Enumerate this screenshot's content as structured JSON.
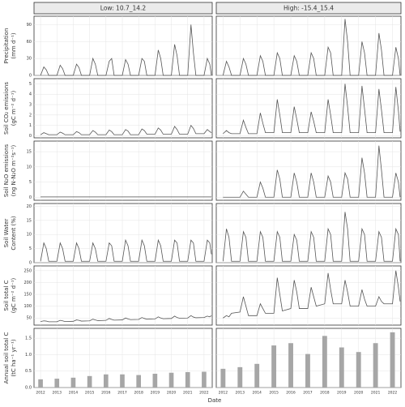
{
  "chart_data": {
    "type": "facet-grid",
    "facets": [
      "Low: 10.7_14.2",
      "High: -15.4_15.4"
    ],
    "x_label": "Date",
    "xlim": [
      2011.6,
      2022.5
    ],
    "xticks": [
      2012,
      2013,
      2014,
      2015,
      2016,
      2017,
      2018,
      2019,
      2020,
      2021,
      2022
    ],
    "x": [
      2012.0,
      2012.2,
      2012.35,
      2012.5,
      2013.0,
      2013.2,
      2013.35,
      2013.5,
      2014.0,
      2014.2,
      2014.35,
      2014.5,
      2015.0,
      2015.2,
      2015.35,
      2015.5,
      2016.0,
      2016.2,
      2016.35,
      2016.5,
      2017.0,
      2017.2,
      2017.35,
      2017.5,
      2018.0,
      2018.2,
      2018.35,
      2018.5,
      2019.0,
      2019.2,
      2019.35,
      2019.5,
      2020.0,
      2020.2,
      2020.35,
      2020.5,
      2021.0,
      2021.2,
      2021.35,
      2021.5,
      2022.0,
      2022.2,
      2022.35,
      2022.45
    ],
    "color": "#555555",
    "bar_color": "#a6a6a6",
    "grid": true,
    "rows": [
      {
        "type": "line",
        "ylabel": [
          "Precipitation",
          "(mm d⁻¹)"
        ],
        "ylim": [
          0,
          105
        ],
        "yticks": [
          0,
          30,
          60,
          90
        ],
        "panels": [
          {
            "values": [
              0,
              15,
              10,
              0,
              0,
              18,
              12,
              0,
              0,
              20,
              14,
              0,
              0,
              30,
              20,
              0,
              0,
              25,
              30,
              0,
              0,
              28,
              20,
              0,
              0,
              30,
              25,
              0,
              0,
              45,
              30,
              0,
              0,
              55,
              35,
              0,
              0,
              90,
              40,
              0,
              0,
              30,
              20,
              0
            ]
          },
          {
            "values": [
              0,
              25,
              15,
              0,
              0,
              30,
              20,
              0,
              0,
              35,
              25,
              0,
              0,
              40,
              30,
              0,
              0,
              35,
              25,
              0,
              0,
              40,
              30,
              0,
              0,
              50,
              40,
              0,
              0,
              100,
              60,
              0,
              0,
              60,
              40,
              0,
              0,
              75,
              45,
              0,
              0,
              50,
              30,
              0
            ]
          }
        ]
      },
      {
        "type": "line",
        "ylabel": [
          "Soil CO₂ emissions",
          "(gC m⁻² d⁻¹)"
        ],
        "ylim": [
          -0.2,
          5.5
        ],
        "yticks": [
          0,
          1,
          2,
          3,
          4,
          5
        ],
        "panels": [
          {
            "values": [
              0.1,
              0.3,
              0.2,
              0.1,
              0.1,
              0.35,
              0.25,
              0.1,
              0.1,
              0.4,
              0.3,
              0.1,
              0.1,
              0.5,
              0.35,
              0.1,
              0.1,
              0.55,
              0.4,
              0.1,
              0.1,
              0.6,
              0.45,
              0.1,
              0.1,
              0.65,
              0.5,
              0.15,
              0.15,
              0.75,
              0.55,
              0.15,
              0.15,
              0.9,
              0.6,
              0.15,
              0.15,
              1.0,
              0.7,
              0.2,
              0.2,
              0.6,
              0.4,
              0.3
            ]
          },
          {
            "values": [
              0.2,
              0.5,
              0.3,
              0.2,
              0.2,
              1.5,
              0.8,
              0.2,
              0.2,
              2.2,
              1.2,
              0.3,
              0.3,
              3.5,
              2.0,
              0.3,
              0.3,
              2.8,
              1.6,
              0.3,
              0.3,
              2.3,
              1.4,
              0.3,
              0.3,
              3.5,
              2.0,
              0.3,
              0.3,
              5.0,
              2.8,
              0.3,
              0.3,
              4.8,
              2.6,
              0.3,
              0.3,
              4.5,
              2.5,
              0.3,
              0.3,
              4.7,
              2.4,
              0.4
            ]
          }
        ]
      },
      {
        "type": "line",
        "ylabel": [
          "Soil N₂O emissions",
          "(ng N-N₂O m⁻²s⁻¹)"
        ],
        "ylim": [
          -1,
          18.5
        ],
        "yticks": [
          0,
          5,
          10,
          15
        ],
        "panels": [
          {
            "values": [
              0.1,
              0.1,
              0.1,
              0.1,
              0.1,
              0.1,
              0.1,
              0.1,
              0.1,
              0.1,
              0.1,
              0.1,
              0.1,
              0.1,
              0.1,
              0.1,
              0.1,
              0.1,
              0.1,
              0.1,
              0.1,
              0.1,
              0.1,
              0.1,
              0.1,
              0.1,
              0.1,
              0.1,
              0.1,
              0.1,
              0.1,
              0.1,
              0.1,
              0.1,
              0.1,
              0.1,
              0.1,
              0.1,
              0.1,
              0.1,
              0.1,
              0.1,
              0.1,
              0.1
            ]
          },
          {
            "values": [
              0,
              0,
              0,
              0,
              0,
              2,
              1,
              0,
              0,
              5,
              3,
              0,
              0,
              9,
              6,
              0,
              0,
              8,
              5,
              0,
              0,
              8,
              5,
              0,
              0,
              7,
              5,
              0,
              0,
              8,
              6,
              0,
              0,
              13,
              8,
              0,
              0,
              17,
              9,
              0,
              0,
              8,
              5,
              0
            ]
          }
        ]
      },
      {
        "type": "line",
        "ylabel": [
          "Soil Water",
          "Content (%)"
        ],
        "ylim": [
          0,
          21
        ],
        "yticks": [
          0,
          5,
          10,
          15,
          20
        ],
        "panels": [
          {
            "values": [
              0.5,
              7,
              5,
              0.5,
              0.5,
              7,
              5,
              0.5,
              0.5,
              7,
              5,
              0.5,
              0.5,
              7,
              5,
              0.5,
              0.5,
              7,
              6,
              0.5,
              0.5,
              8,
              6,
              0.5,
              0.5,
              8,
              6,
              0.5,
              0.5,
              8,
              6,
              0.5,
              0.5,
              8,
              7,
              0.5,
              0.5,
              8,
              7,
              0.5,
              0.5,
              8,
              7,
              3
            ]
          },
          {
            "values": [
              0.5,
              12,
              9,
              0.5,
              0.5,
              11,
              9,
              0.5,
              0.5,
              11,
              9,
              0.5,
              0.5,
              11,
              9,
              0.5,
              0.5,
              10,
              8,
              0.5,
              0.5,
              11,
              9,
              0.5,
              0.5,
              12,
              10,
              0.5,
              0.5,
              18,
              12,
              0.5,
              0.5,
              12,
              10,
              0.5,
              0.5,
              11,
              9,
              0.5,
              0.5,
              12,
              10,
              0.5
            ]
          }
        ]
      },
      {
        "type": "line",
        "ylabel": [
          "Soil total C",
          "(gC m⁻² d⁻¹)"
        ],
        "ylim": [
          20,
          270
        ],
        "yticks": [
          50,
          100,
          150,
          200,
          250
        ],
        "panels": [
          {
            "values": [
              35,
              38,
              37,
              34,
              34,
              40,
              38,
              35,
              36,
              42,
              40,
              37,
              38,
              45,
              42,
              39,
              40,
              48,
              44,
              41,
              42,
              50,
              46,
              43,
              44,
              52,
              48,
              45,
              46,
              55,
              50,
              47,
              48,
              58,
              52,
              49,
              50,
              60,
              54,
              51,
              52,
              58,
              55,
              60
            ]
          },
          {
            "values": [
              50,
              60,
              55,
              70,
              75,
              140,
              100,
              60,
              60,
              110,
              90,
              70,
              70,
              220,
              150,
              80,
              90,
              210,
              160,
              90,
              90,
              180,
              140,
              100,
              110,
              240,
              170,
              110,
              110,
              210,
              160,
              100,
              100,
              170,
              130,
              100,
              100,
              140,
              120,
              110,
              110,
              250,
              180,
              120
            ]
          }
        ]
      },
      {
        "type": "bar",
        "ylabel": [
          "Annual soil total C",
          "(tC ha⁻¹ yr⁻¹)"
        ],
        "ylim": [
          0,
          1.8
        ],
        "yticks": [
          {
            "value": 0,
            "label": "0.0"
          },
          {
            "value": 0.5,
            "label": "0.5"
          },
          {
            "value": 1,
            "label": "1.0"
          },
          {
            "value": 1.5,
            "label": "1.5"
          }
        ],
        "x": [
          2012,
          2013,
          2014,
          2015,
          2016,
          2017,
          2018,
          2019,
          2020,
          2021,
          2022
        ],
        "panels": [
          {
            "values": [
              0.25,
              0.27,
              0.3,
              0.35,
              0.4,
              0.4,
              0.38,
              0.42,
              0.45,
              0.47,
              0.48
            ]
          },
          {
            "values": [
              0.57,
              0.62,
              0.72,
              1.28,
              1.35,
              1.02,
              1.57,
              1.22,
              1.08,
              1.35,
              1.68
            ]
          }
        ]
      }
    ]
  }
}
